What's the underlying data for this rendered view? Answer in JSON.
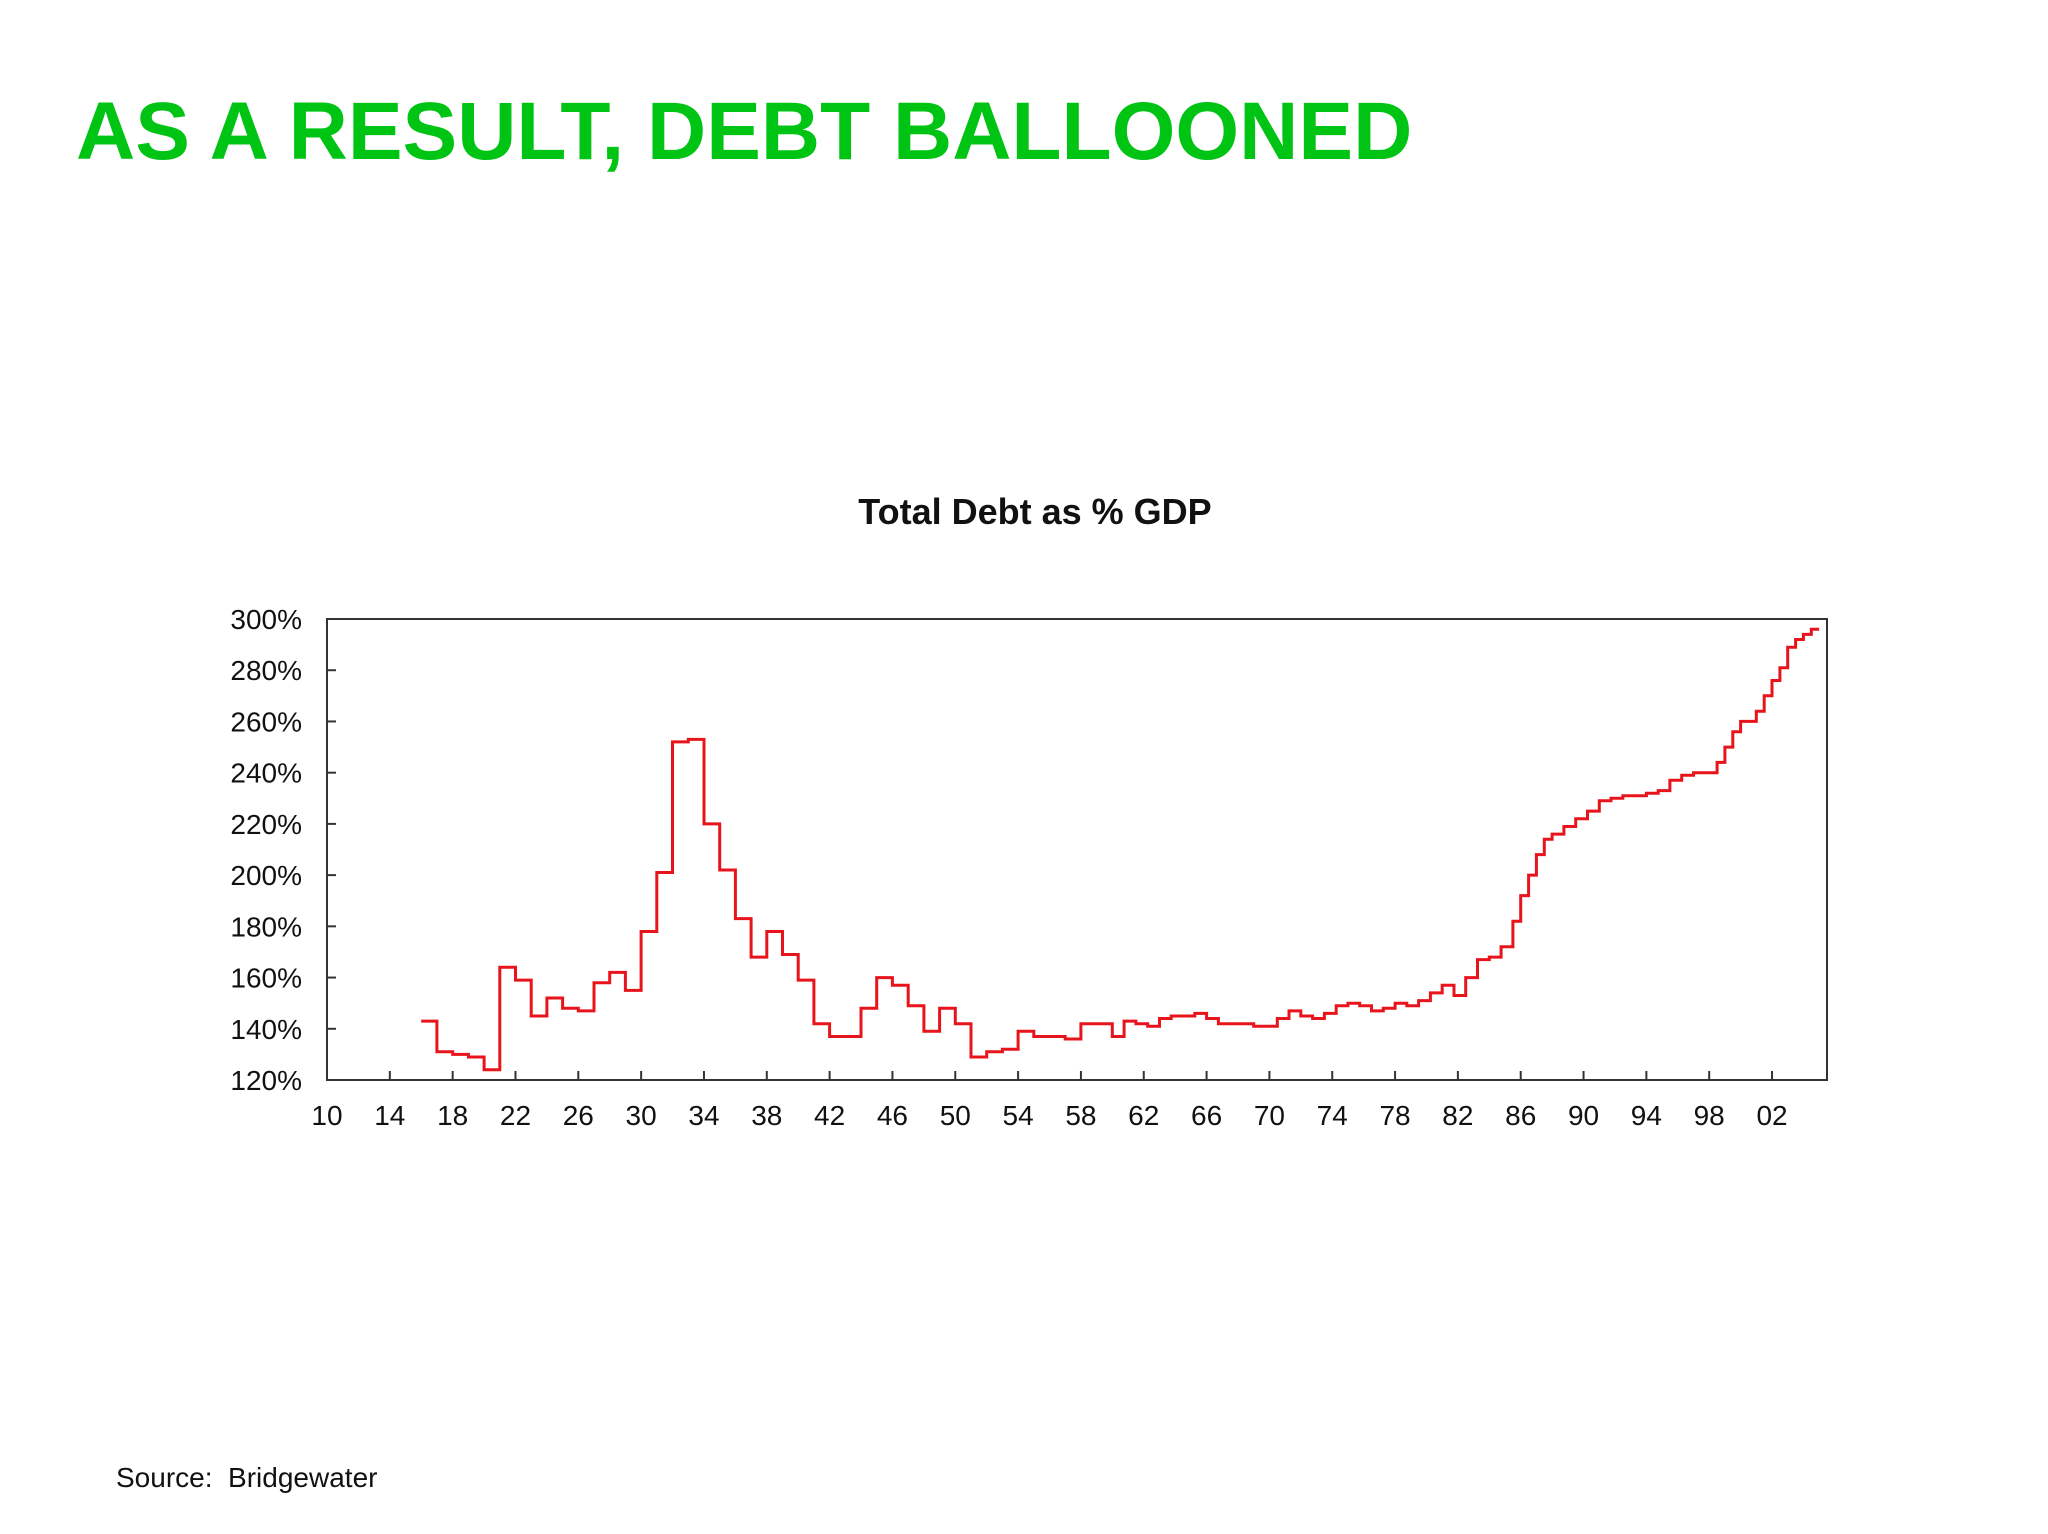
{
  "slide": {
    "title": "AS A RESULT, DEBT BALLOONED",
    "title_color": "#00c414",
    "source": "Source:  Bridgewater"
  },
  "chart_data": {
    "type": "line",
    "title": "Total Debt as % GDP",
    "xlabel": "",
    "ylabel": "",
    "xlim": [
      1910,
      2005.5
    ],
    "ylim": [
      120,
      300
    ],
    "x_ticks": [
      1910,
      1914,
      1918,
      1922,
      1926,
      1930,
      1934,
      1938,
      1942,
      1946,
      1950,
      1954,
      1958,
      1962,
      1966,
      1970,
      1974,
      1978,
      1982,
      1986,
      1990,
      1994,
      1998,
      2002
    ],
    "x_tick_labels": [
      "10",
      "14",
      "18",
      "22",
      "26",
      "30",
      "34",
      "38",
      "42",
      "46",
      "50",
      "54",
      "58",
      "62",
      "66",
      "70",
      "74",
      "78",
      "82",
      "86",
      "90",
      "94",
      "98",
      "02"
    ],
    "y_ticks": [
      120,
      140,
      160,
      180,
      200,
      220,
      240,
      260,
      280,
      300
    ],
    "y_tick_labels": [
      "120%",
      "140%",
      "160%",
      "180%",
      "200%",
      "220%",
      "240%",
      "260%",
      "280%",
      "300%"
    ],
    "grid": false,
    "step": true,
    "series_color": "#e8141c",
    "series": [
      {
        "points": [
          [
            1916,
            143
          ],
          [
            1917,
            131
          ],
          [
            1918,
            130
          ],
          [
            1919,
            129
          ],
          [
            1920,
            124
          ],
          [
            1921,
            164
          ],
          [
            1922,
            159
          ],
          [
            1923,
            145
          ],
          [
            1924,
            152
          ],
          [
            1925,
            148
          ],
          [
            1926,
            147
          ],
          [
            1927,
            158
          ],
          [
            1928,
            162
          ],
          [
            1929,
            155
          ],
          [
            1930,
            178
          ],
          [
            1931,
            201
          ],
          [
            1932,
            252
          ],
          [
            1933,
            253
          ],
          [
            1934,
            220
          ],
          [
            1935,
            202
          ],
          [
            1936,
            183
          ],
          [
            1937,
            168
          ],
          [
            1938,
            178
          ],
          [
            1939,
            169
          ],
          [
            1940,
            159
          ],
          [
            1941,
            142
          ],
          [
            1942,
            137
          ],
          [
            1943,
            137
          ],
          [
            1944,
            148
          ],
          [
            1945,
            160
          ],
          [
            1946,
            157
          ],
          [
            1947,
            149
          ],
          [
            1948,
            139
          ],
          [
            1949,
            148
          ],
          [
            1950,
            142
          ],
          [
            1951,
            129
          ],
          [
            1952,
            131
          ],
          [
            1953,
            132
          ],
          [
            1954,
            139
          ],
          [
            1955,
            137
          ],
          [
            1956,
            137
          ],
          [
            1957,
            136
          ],
          [
            1958,
            142
          ],
          [
            1959,
            142
          ],
          [
            1960,
            137
          ],
          [
            1960.75,
            143
          ],
          [
            1961.5,
            142
          ],
          [
            1962.25,
            141
          ],
          [
            1963,
            144
          ],
          [
            1963.75,
            145
          ],
          [
            1964.5,
            145
          ],
          [
            1965.25,
            146
          ],
          [
            1966,
            144
          ],
          [
            1966.75,
            142
          ],
          [
            1967.5,
            142
          ],
          [
            1968.25,
            142
          ],
          [
            1969,
            141
          ],
          [
            1969.75,
            141
          ],
          [
            1970.5,
            144
          ],
          [
            1971.25,
            147
          ],
          [
            1972,
            145
          ],
          [
            1972.75,
            144
          ],
          [
            1973.5,
            146
          ],
          [
            1974.25,
            149
          ],
          [
            1975,
            150
          ],
          [
            1975.75,
            149
          ],
          [
            1976.5,
            147
          ],
          [
            1977.25,
            148
          ],
          [
            1978,
            150
          ],
          [
            1978.75,
            149
          ],
          [
            1979.5,
            151
          ],
          [
            1980.25,
            154
          ],
          [
            1981,
            157
          ],
          [
            1981.75,
            153
          ],
          [
            1982.5,
            160
          ],
          [
            1983.25,
            167
          ],
          [
            1984,
            168
          ],
          [
            1984.75,
            172
          ],
          [
            1985.5,
            182
          ],
          [
            1986,
            192
          ],
          [
            1986.5,
            200
          ],
          [
            1987,
            208
          ],
          [
            1987.5,
            214
          ],
          [
            1988,
            216
          ],
          [
            1988.75,
            219
          ],
          [
            1989.5,
            222
          ],
          [
            1990.25,
            225
          ],
          [
            1991,
            229
          ],
          [
            1991.75,
            230
          ],
          [
            1992.5,
            231
          ],
          [
            1993.25,
            231
          ],
          [
            1994,
            232
          ],
          [
            1994.75,
            233
          ],
          [
            1995.5,
            237
          ],
          [
            1996.25,
            239
          ],
          [
            1997,
            240
          ],
          [
            1997.75,
            240
          ],
          [
            1998.5,
            244
          ],
          [
            1999,
            250
          ],
          [
            1999.5,
            256
          ],
          [
            2000,
            260
          ],
          [
            2000.5,
            260
          ],
          [
            2001,
            264
          ],
          [
            2001.5,
            270
          ],
          [
            2002,
            276
          ],
          [
            2002.5,
            281
          ],
          [
            2003,
            289
          ],
          [
            2003.5,
            292
          ],
          [
            2004,
            294
          ],
          [
            2004.5,
            296
          ],
          [
            2005,
            296
          ]
        ]
      }
    ]
  }
}
